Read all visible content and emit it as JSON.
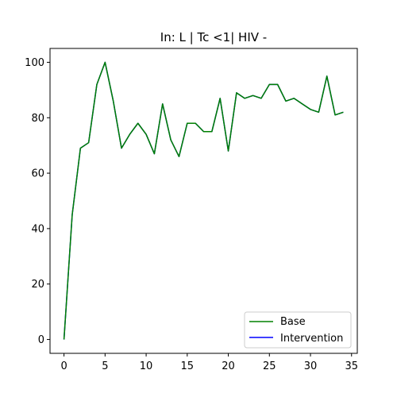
{
  "chart_data": {
    "type": "line",
    "title": "In: L | Tc <1| HIV -",
    "xlabel": "",
    "ylabel": "",
    "xlim": [
      -1.7,
      35.7
    ],
    "ylim": [
      -5,
      105
    ],
    "xticks": [
      0,
      5,
      10,
      15,
      20,
      25,
      30,
      35
    ],
    "yticks": [
      0,
      20,
      40,
      60,
      80,
      100
    ],
    "grid": false,
    "legend_position": "lower-right",
    "x": [
      0,
      1,
      2,
      3,
      4,
      5,
      6,
      7,
      8,
      9,
      10,
      11,
      12,
      13,
      14,
      15,
      16,
      17,
      18,
      19,
      20,
      21,
      22,
      23,
      24,
      25,
      26,
      27,
      28,
      29,
      30,
      31,
      32,
      33,
      34
    ],
    "series": [
      {
        "name": "Base",
        "color": "#008000",
        "values": [
          0,
          45,
          69,
          71,
          92,
          100,
          86,
          69,
          74,
          78,
          74,
          67,
          85,
          72,
          66,
          78,
          78,
          75,
          75,
          87,
          68,
          89,
          87,
          88,
          87,
          92,
          92,
          86,
          87,
          85,
          83,
          82,
          95,
          81,
          82
        ]
      },
      {
        "name": "Intervention",
        "color": "#0000ff",
        "values": [
          0,
          45,
          69,
          71,
          92,
          100,
          86,
          69,
          74,
          78,
          74,
          67,
          85,
          72,
          66,
          78,
          78,
          75,
          75,
          87,
          68,
          89,
          87,
          88,
          87,
          92,
          92,
          86,
          87,
          85,
          83,
          82,
          95,
          81,
          82
        ]
      }
    ]
  }
}
